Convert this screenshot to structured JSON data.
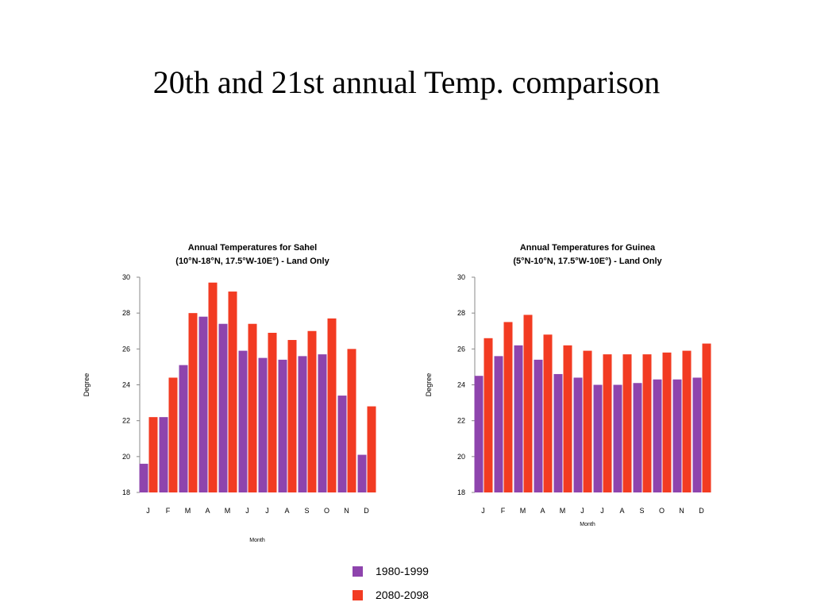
{
  "slide": {
    "title": "20th and 21st annual Temp. comparison"
  },
  "colors": {
    "series_1980": "#8e44ad",
    "series_2080": "#f23b22"
  },
  "legend": [
    {
      "label": "1980-1999"
    },
    {
      "label": "2080-2098"
    }
  ],
  "chart_data": [
    {
      "type": "bar",
      "title": "Annual Temperatures for Sahel",
      "subtitle": "(10°N-18°N, 17.5°W-10E°)  - Land Only",
      "xlabel": "Month",
      "ylabel": "Degree",
      "ylim": [
        18,
        30
      ],
      "yticks": [
        "30",
        "28",
        "26",
        "24",
        "22",
        "20",
        "18"
      ],
      "categories": [
        "J",
        "F",
        "M",
        "A",
        "M",
        "J",
        "J",
        "A",
        "S",
        "O",
        "N",
        "D"
      ],
      "series": [
        {
          "name": "1980-1999",
          "values": [
            19.6,
            22.2,
            25.1,
            27.8,
            27.4,
            25.9,
            25.5,
            25.4,
            25.6,
            25.7,
            23.4,
            20.1
          ]
        },
        {
          "name": "2080-2098",
          "values": [
            22.2,
            24.4,
            28.0,
            29.7,
            29.2,
            27.4,
            26.9,
            26.5,
            27.0,
            27.7,
            26.0,
            22.8
          ]
        }
      ]
    },
    {
      "type": "bar",
      "title": "Annual Temperatures for Guinea",
      "subtitle": "(5°N-10°N, 17.5°W-10E°)  - Land Only",
      "xlabel": "Month",
      "ylabel": "Degree",
      "ylim": [
        18,
        30
      ],
      "yticks": [
        "30",
        "28",
        "26",
        "24",
        "22",
        "20",
        "18"
      ],
      "categories": [
        "J",
        "F",
        "M",
        "A",
        "M",
        "J",
        "J",
        "A",
        "S",
        "O",
        "N",
        "D"
      ],
      "series": [
        {
          "name": "1980-1999",
          "values": [
            24.5,
            25.6,
            26.2,
            25.4,
            24.6,
            24.4,
            24.0,
            24.0,
            24.1,
            24.3,
            24.3,
            24.4
          ]
        },
        {
          "name": "2080-2098",
          "values": [
            26.6,
            27.5,
            27.9,
            26.8,
            26.2,
            25.9,
            25.7,
            25.7,
            25.7,
            25.8,
            25.9,
            26.3
          ]
        }
      ]
    }
  ]
}
